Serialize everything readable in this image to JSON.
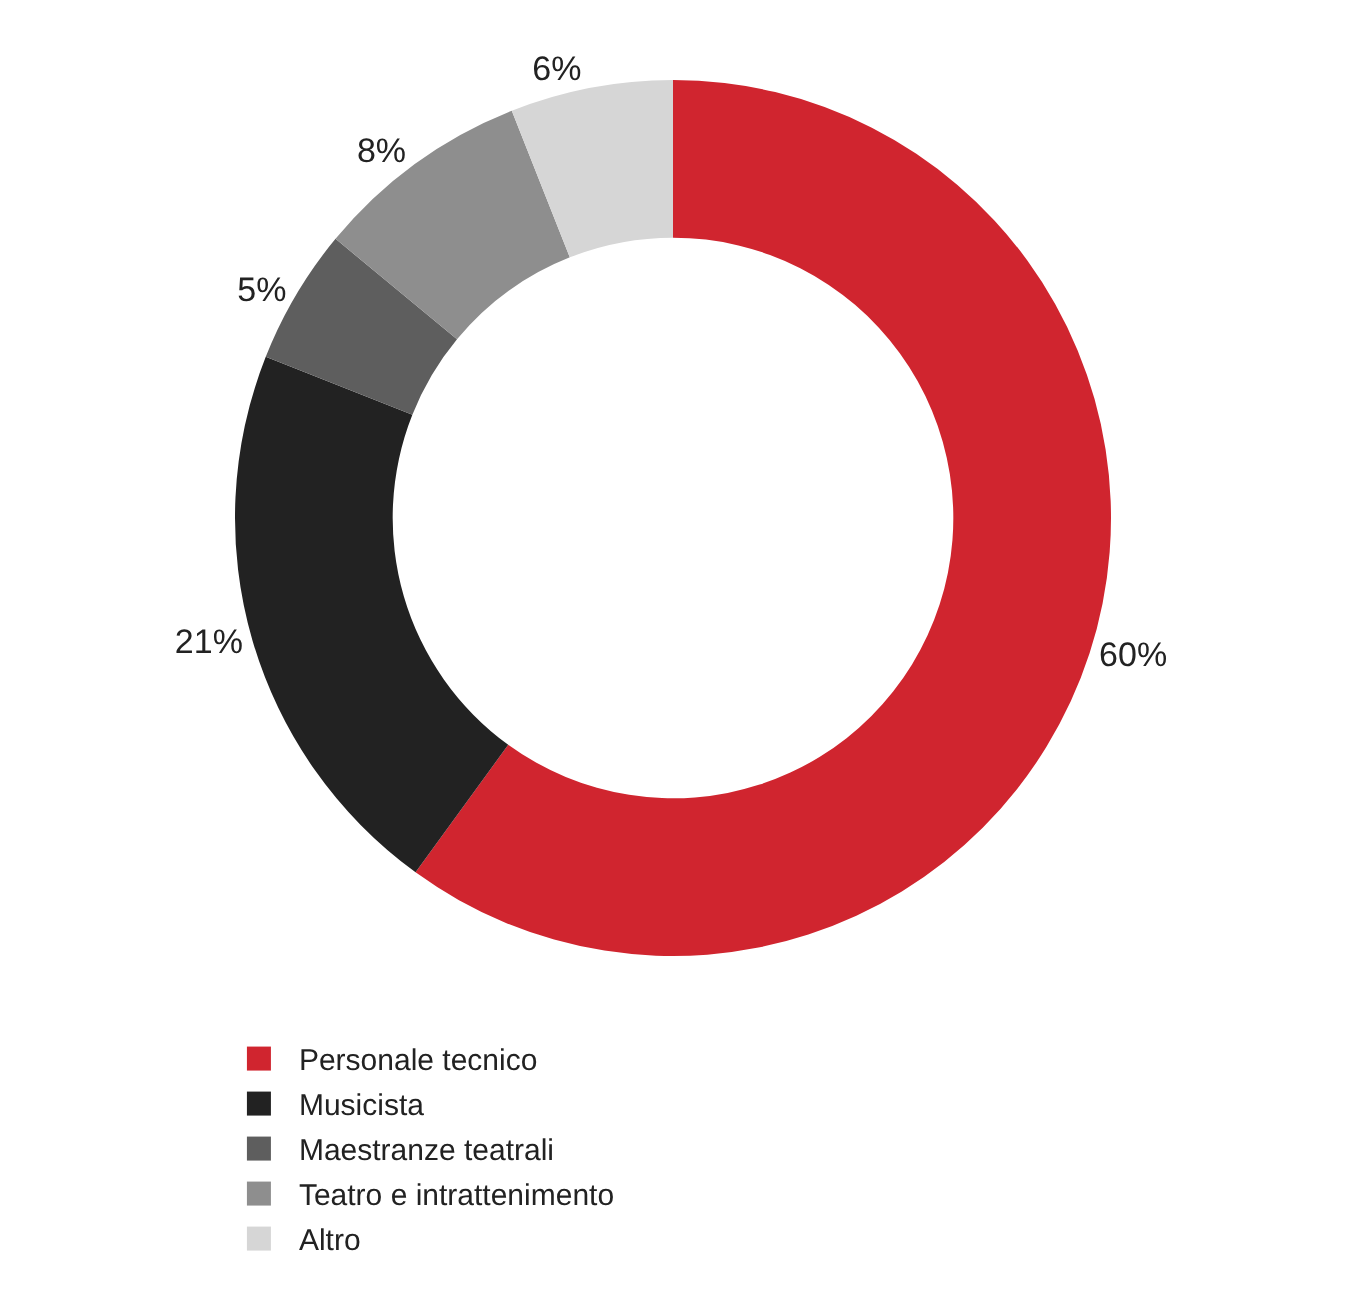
{
  "chart_data": {
    "type": "donut",
    "categories": [
      "Personale tecnico",
      "Musicista",
      "Maestranze teatrali",
      "Teatro e intrattenimento",
      "Altro"
    ],
    "values": [
      60,
      21,
      5,
      8,
      6
    ],
    "value_labels": [
      "60%",
      "21%",
      "5%",
      "8%",
      "6%"
    ],
    "colors": [
      "#d0252f",
      "#222222",
      "#5e5e5e",
      "#8e8e8e",
      "#d6d6d6"
    ],
    "legend": "bottom"
  }
}
